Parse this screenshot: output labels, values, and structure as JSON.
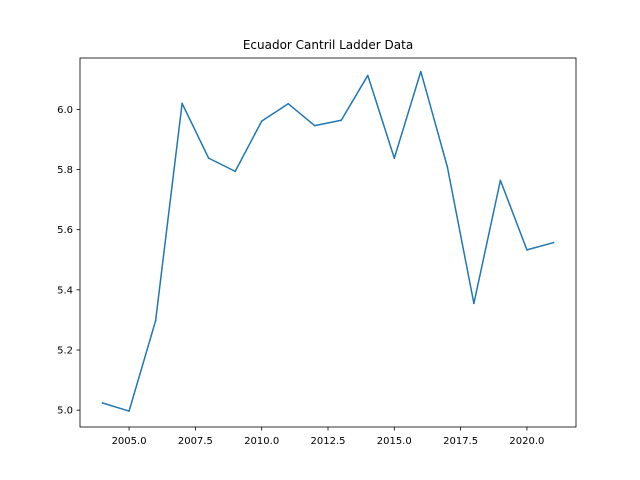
{
  "chart_data": {
    "type": "line",
    "title": "Ecuador Cantril Ladder Data",
    "xlabel": "",
    "ylabel": "",
    "xlim": [
      2003.15,
      2021.85
    ],
    "ylim": [
      4.944,
      6.171
    ],
    "xticks": [
      2005.0,
      2007.5,
      2010.0,
      2012.5,
      2015.0,
      2017.5,
      2020.0
    ],
    "xtick_labels": [
      "2005.0",
      "2007.5",
      "2010.0",
      "2012.5",
      "2015.0",
      "2017.5",
      "2020.0"
    ],
    "yticks": [
      5.0,
      5.2,
      5.4,
      5.6,
      5.8,
      6.0
    ],
    "ytick_labels": [
      "5.0",
      "5.2",
      "5.4",
      "5.6",
      "5.8",
      "6.0"
    ],
    "grid": false,
    "series": [
      {
        "color": "#1f77b4",
        "x": [
          2004,
          2005,
          2006,
          2007,
          2008,
          2009,
          2010,
          2011,
          2012,
          2013,
          2014,
          2015,
          2016,
          2017,
          2018,
          2019,
          2020,
          2021
        ],
        "y": [
          5.024,
          4.997,
          5.297,
          6.02,
          5.838,
          5.794,
          5.961,
          6.019,
          5.946,
          5.964,
          6.113,
          5.838,
          6.126,
          5.809,
          5.355,
          5.764,
          5.533,
          5.557
        ]
      }
    ]
  }
}
